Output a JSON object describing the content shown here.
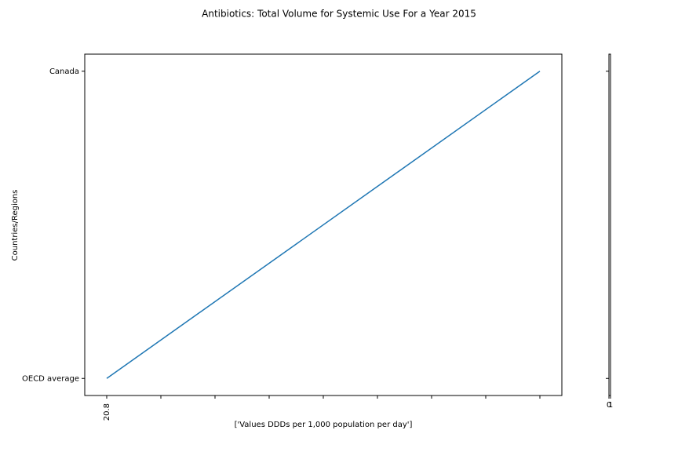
{
  "chart_data": {
    "type": "line",
    "title": "Antibiotics: Total Volume for Systemic Use For a Year 2015",
    "xlabel": "['Values DDDs per 1,000 population per day']",
    "ylabel": "Countries/Regions",
    "categories": [
      "OECD average",
      "Canada"
    ],
    "series": [
      {
        "color": "#1f77b4",
        "values": [
          20.8,
          28.8
        ]
      }
    ],
    "xlim": [
      20.394,
      29.206
    ],
    "xticks": [
      {
        "value": 20.8,
        "label": "20.8"
      },
      {
        "value": 21.8,
        "label": null
      },
      {
        "value": 22.8,
        "label": null
      },
      {
        "value": 23.8,
        "label": null
      },
      {
        "value": 24.8,
        "label": null
      },
      {
        "value": 25.8,
        "label": null
      },
      {
        "value": 26.8,
        "label": null
      },
      {
        "value": 27.8,
        "label": null
      },
      {
        "value": 28.8,
        "label": null
      }
    ],
    "side_axis": {
      "xlim": [
        0,
        1
      ],
      "xticks": [
        0,
        1
      ]
    }
  }
}
